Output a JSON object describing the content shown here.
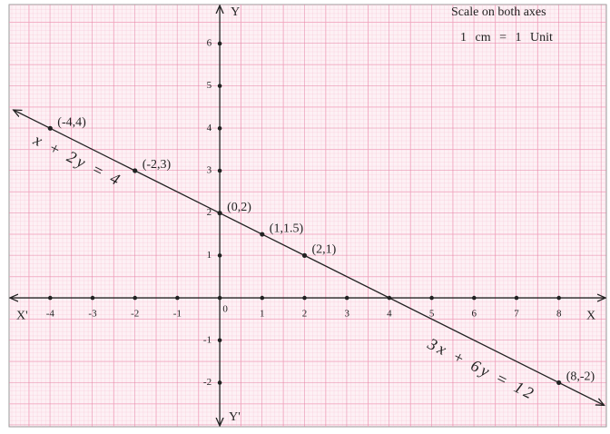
{
  "chart_data": {
    "type": "line",
    "annotations": [
      "Scale on both axes",
      "1 cm = 1 Unit"
    ],
    "x_label": "X",
    "x_label_neg": "X'",
    "y_label": "Y",
    "y_label_neg": "Y'",
    "xlim": [
      -4.97,
      9.12
    ],
    "ylim": [
      -3.04,
      6.92
    ],
    "xticks": [
      -4,
      -3,
      -2,
      -1,
      0,
      1,
      2,
      3,
      4,
      5,
      6,
      7,
      8
    ],
    "yticks": [
      -2,
      -1,
      1,
      2,
      3,
      4,
      5,
      6
    ],
    "grid": true,
    "color": "#222222",
    "equations": [
      "x + 2y = 4",
      "3x + 6y = 12"
    ],
    "x": [
      -4,
      -2,
      0,
      1,
      2,
      8
    ],
    "values": [
      4,
      3,
      2,
      1.5,
      1,
      -2
    ],
    "point_labels": [
      "(-4,4)",
      "(-2,3)",
      "(0,2)",
      "(1,1.5)",
      "(2,1)",
      "(8,-2)"
    ]
  }
}
